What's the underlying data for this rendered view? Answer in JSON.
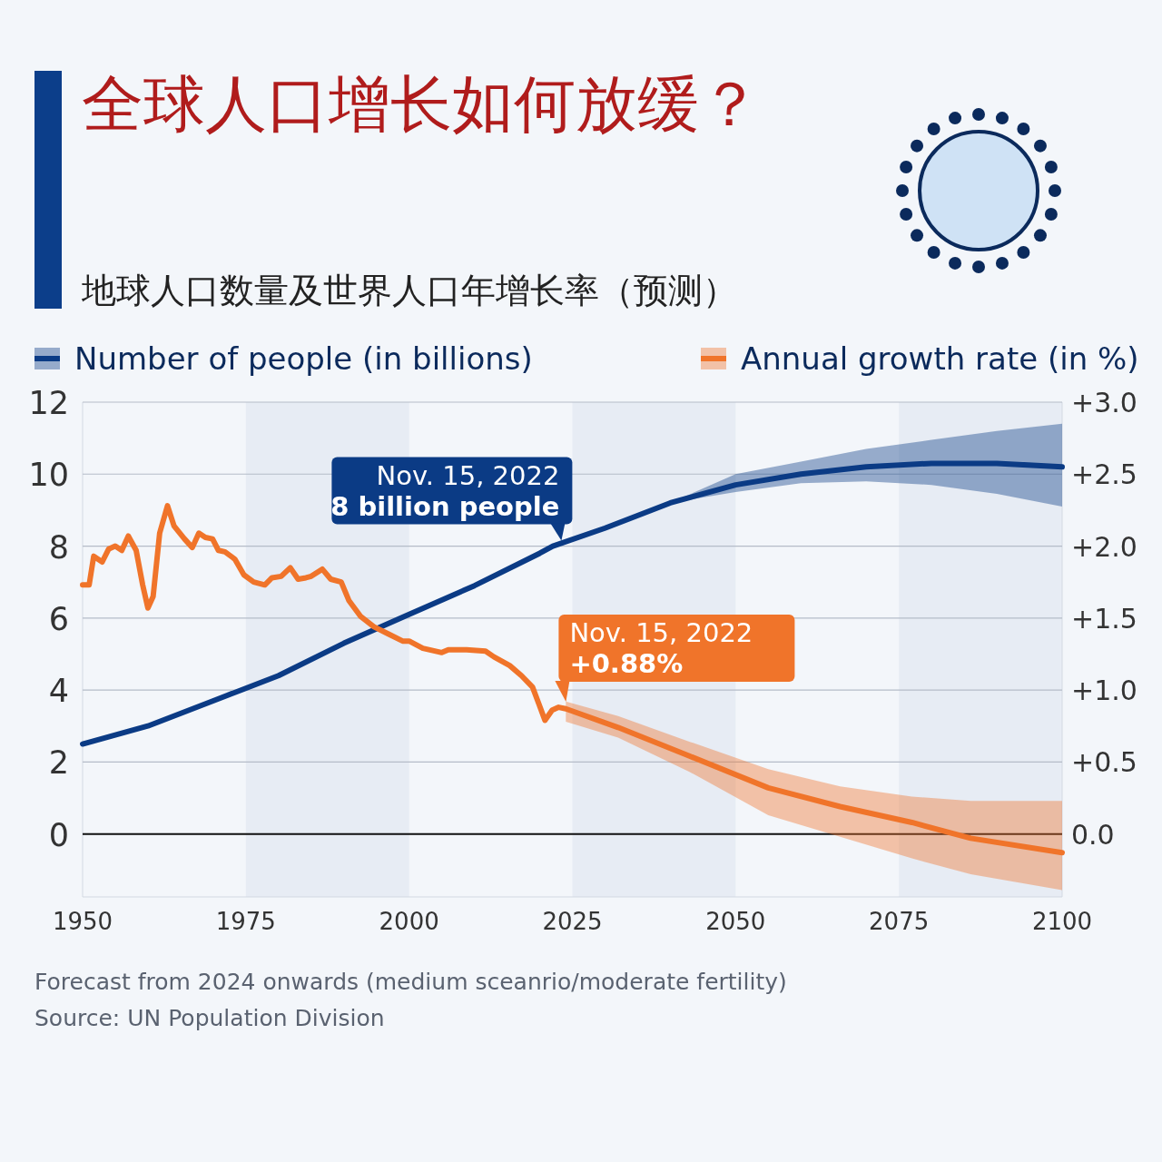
{
  "chart_data": {
    "type": "line",
    "title": "全球人口增长如何放缓？",
    "subtitle": "地球人口数量及世界人口年增长率（预测）",
    "xlim": [
      1950,
      2100
    ],
    "xticks": [
      1950,
      1975,
      2000,
      2025,
      2050,
      2075,
      2100
    ],
    "ylim": [
      -1.75,
      12
    ],
    "yticks": [
      0,
      2,
      4,
      6,
      8,
      10,
      12
    ],
    "y2lim": [
      -0.4375,
      3
    ],
    "y2ticks": [
      {
        "value": 0,
        "label": "0.0"
      },
      {
        "value": 0.5,
        "label": "+0.5"
      },
      {
        "value": 1,
        "label": "+1.0"
      },
      {
        "value": 1.5,
        "label": "+1.5"
      },
      {
        "value": 2,
        "label": "+2.0"
      },
      {
        "value": 2.5,
        "label": "+2.5"
      },
      {
        "value": 3,
        "label": "+3.0"
      }
    ],
    "grid": "y",
    "legend": "top",
    "bands": [
      {
        "axis": "x",
        "from": 1975,
        "to": 2000,
        "color": "#e7ecf4"
      },
      {
        "axis": "x",
        "from": 2025,
        "to": 2050,
        "color": "#e7ecf4"
      },
      {
        "axis": "x",
        "from": 2075,
        "to": 2100,
        "color": "#e7ecf4"
      }
    ],
    "series": [
      {
        "name": "Number of people (in billions)",
        "color": "#0b3b85",
        "x": [
          1950,
          1960,
          1970,
          1980,
          1990,
          2000,
          2010,
          2020,
          2022,
          2030,
          2040,
          2050,
          2060,
          2070,
          2080,
          2090,
          2100
        ],
        "values": [
          2.5,
          3.0,
          3.7,
          4.4,
          5.3,
          6.1,
          6.9,
          7.8,
          8.0,
          8.5,
          9.2,
          9.7,
          10.0,
          10.2,
          10.3,
          10.3,
          10.2
        ],
        "lower": [
          null,
          null,
          null,
          null,
          null,
          null,
          null,
          null,
          null,
          null,
          9.2,
          9.5,
          9.75,
          9.8,
          9.7,
          9.45,
          9.1
        ],
        "upper": [
          null,
          null,
          null,
          null,
          null,
          null,
          null,
          null,
          null,
          null,
          9.2,
          10.0,
          10.35,
          10.7,
          10.95,
          11.2,
          11.4
        ]
      },
      {
        "name": "Annual growth rate (in %)",
        "color": "#f0742a",
        "axis": "y2",
        "x": [
          1950,
          1951,
          1951.7,
          1953,
          1954,
          1955,
          1956,
          1957,
          1958.2,
          1959.2,
          1960,
          1960.8,
          1961.8,
          1963,
          1964,
          1965.6,
          1966.8,
          1967.8,
          1968.8,
          1969.9,
          1970.8,
          1971.8,
          1973.3,
          1974.7,
          1976.2,
          1977.9,
          1979,
          1980.4,
          1981.8,
          1983,
          1984.2,
          1985,
          1986.7,
          1988,
          1989.6,
          1990.8,
          1992.6,
          1994.6,
          1996.8,
          1999,
          2000,
          2002.1,
          2005,
          2006,
          2008.8,
          2011.7,
          2013,
          2015.4,
          2017.2,
          2018.9,
          2019.9,
          2020.8,
          2021.9,
          2022.9,
          2024,
          2032,
          2043,
          2055,
          2066,
          2077,
          2086,
          2100
        ],
        "values": [
          1.73,
          1.73,
          1.93,
          1.89,
          1.98,
          2.0,
          1.97,
          2.07,
          1.97,
          1.73,
          1.57,
          1.65,
          2.09,
          2.28,
          2.14,
          2.05,
          1.99,
          2.09,
          2.06,
          2.05,
          1.97,
          1.96,
          1.91,
          1.8,
          1.75,
          1.73,
          1.78,
          1.79,
          1.85,
          1.77,
          1.78,
          1.79,
          1.84,
          1.77,
          1.75,
          1.62,
          1.51,
          1.44,
          1.39,
          1.34,
          1.34,
          1.29,
          1.26,
          1.28,
          1.28,
          1.27,
          1.23,
          1.17,
          1.1,
          1.02,
          0.9,
          0.79,
          0.86,
          0.88,
          0.87,
          0.74,
          0.54,
          0.32,
          0.19,
          0.08,
          -0.03,
          -0.13
        ],
        "lower": [
          null,
          null,
          null,
          null,
          null,
          null,
          null,
          null,
          null,
          null,
          null,
          null,
          null,
          null,
          null,
          null,
          null,
          null,
          null,
          null,
          null,
          null,
          null,
          null,
          null,
          null,
          null,
          null,
          null,
          null,
          null,
          null,
          null,
          null,
          null,
          null,
          null,
          null,
          null,
          null,
          null,
          null,
          null,
          null,
          null,
          null,
          null,
          null,
          null,
          null,
          null,
          null,
          null,
          null,
          0.78,
          0.67,
          0.43,
          0.13,
          -0.02,
          -0.17,
          -0.28,
          -0.39
        ],
        "upper": [
          null,
          null,
          null,
          null,
          null,
          null,
          null,
          null,
          null,
          null,
          null,
          null,
          null,
          null,
          null,
          null,
          null,
          null,
          null,
          null,
          null,
          null,
          null,
          null,
          null,
          null,
          null,
          null,
          null,
          null,
          null,
          null,
          null,
          null,
          null,
          null,
          null,
          null,
          null,
          null,
          null,
          null,
          null,
          null,
          null,
          null,
          null,
          null,
          null,
          null,
          null,
          null,
          null,
          null,
          0.92,
          0.82,
          0.64,
          0.45,
          0.33,
          0.26,
          0.23,
          0.23
        ]
      }
    ],
    "annotations": [
      {
        "text": "Nov. 15, 2022\n8 billion people",
        "x": 2022.9,
        "y": 8
      },
      "Nov. 15, 2022\n+0.88%",
      "Forecast from 2024 onwards (medium sceanrio/moderate fertility)",
      "Source: UN Population Division"
    ]
  }
}
